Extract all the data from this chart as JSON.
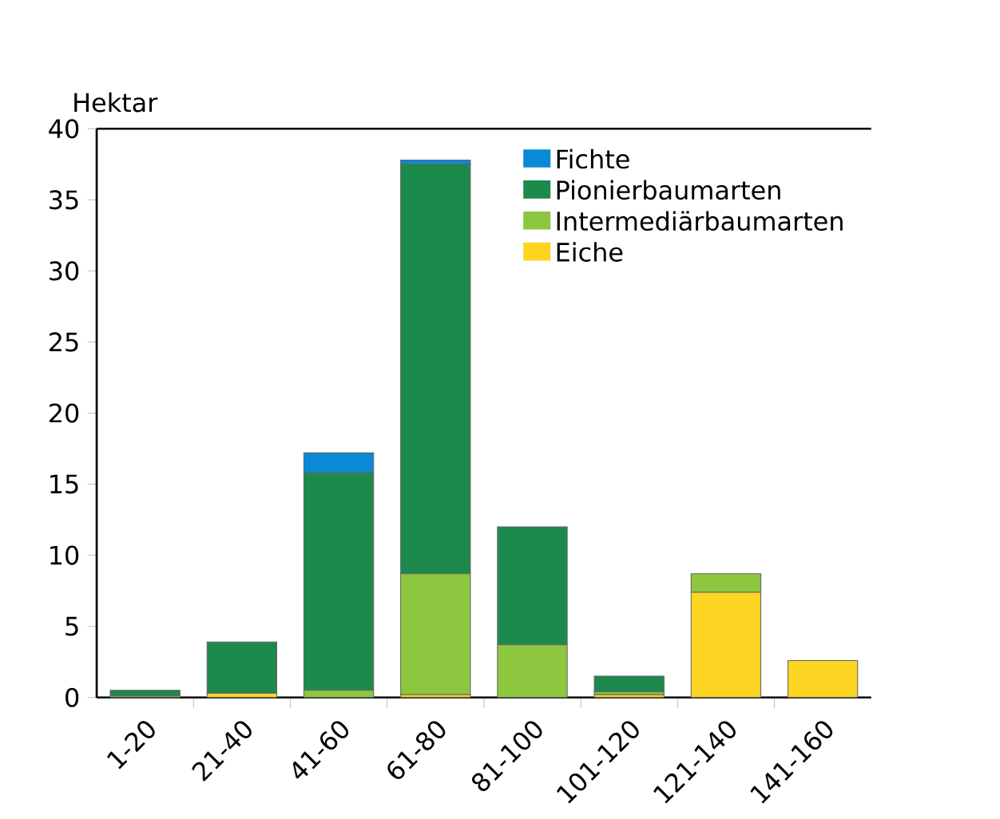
{
  "chart_data": {
    "type": "bar",
    "stacked": true,
    "ylabel": "Hektar",
    "categories": [
      "1-20",
      "21-40",
      "41-60",
      "61-80",
      "81-100",
      "101-120",
      "121-140",
      "141-160"
    ],
    "series": [
      {
        "name": "Eiche",
        "color": "#fcd422",
        "values": [
          0,
          0.3,
          0,
          0.2,
          0,
          0.2,
          7.4,
          2.6
        ]
      },
      {
        "name": "Intermediärbaumarten",
        "color": "#8dc63f",
        "values": [
          0.1,
          0,
          0.5,
          8.5,
          3.7,
          0.2,
          1.3,
          0
        ]
      },
      {
        "name": "Pionierbaumarten",
        "color": "#1b8a4c",
        "values": [
          0.4,
          3.6,
          15.3,
          28.8,
          8.3,
          1.1,
          0,
          0
        ]
      },
      {
        "name": "Fichte",
        "color": "#0a8ad6",
        "values": [
          0,
          0,
          1.4,
          0.3,
          0,
          0,
          0,
          0
        ]
      }
    ],
    "ylim": [
      0,
      40
    ],
    "yticks": [
      0,
      5,
      10,
      15,
      20,
      25,
      30,
      35,
      40
    ],
    "grid": false,
    "legend": "top right"
  }
}
